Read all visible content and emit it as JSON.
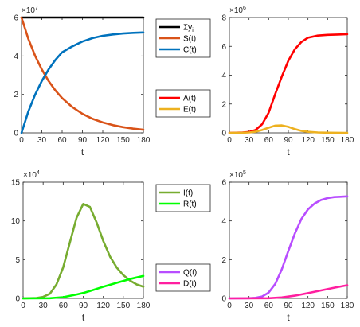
{
  "chart_data": [
    {
      "type": "line",
      "xlabel": "t",
      "ylabel": "",
      "xlim": [
        0,
        180
      ],
      "ylim": [
        0,
        6
      ],
      "xticks": [
        0,
        30,
        60,
        90,
        120,
        150,
        180
      ],
      "yticks": [
        0,
        2,
        4,
        6
      ],
      "multiplier": "×10",
      "multiplier_exp": "7",
      "legend": "right-outside",
      "series": [
        {
          "name": "Σy",
          "name_sub": "i",
          "color": "#000000",
          "x": [
            0,
            30,
            60,
            90,
            120,
            150,
            180
          ],
          "y": [
            6,
            6,
            6,
            6,
            6,
            6,
            6
          ]
        },
        {
          "name": "S(t)",
          "color": "#D95319",
          "x": [
            0,
            10,
            20,
            30,
            40,
            50,
            60,
            75,
            90,
            105,
            120,
            135,
            150,
            165,
            180
          ],
          "y": [
            6,
            4.9,
            4.02,
            3.3,
            2.7,
            2.21,
            1.81,
            1.34,
            0.99,
            0.73,
            0.54,
            0.4,
            0.3,
            0.22,
            0.16
          ]
        },
        {
          "name": "C(t)",
          "color": "#0072BD",
          "x": [
            0,
            10,
            20,
            30,
            40,
            50,
            60,
            75,
            90,
            105,
            120,
            135,
            150,
            165,
            180
          ],
          "y": [
            0,
            1.1,
            1.98,
            2.7,
            3.3,
            3.79,
            4.19,
            4.5,
            4.75,
            4.93,
            5.05,
            5.12,
            5.17,
            5.2,
            5.22
          ]
        }
      ]
    },
    {
      "type": "line",
      "xlabel": "t",
      "ylabel": "",
      "xlim": [
        0,
        180
      ],
      "ylim": [
        0,
        8
      ],
      "xticks": [
        0,
        30,
        60,
        90,
        120,
        150,
        180
      ],
      "yticks": [
        0,
        2,
        4,
        6,
        8
      ],
      "multiplier": "×10",
      "multiplier_exp": "6",
      "legend": "right-outside",
      "series": [
        {
          "name": "A(t)",
          "color": "#FF0000",
          "x": [
            0,
            20,
            30,
            40,
            50,
            60,
            70,
            80,
            90,
            100,
            110,
            120,
            135,
            150,
            165,
            180
          ],
          "y": [
            0,
            0.02,
            0.06,
            0.2,
            0.6,
            1.4,
            2.7,
            3.9,
            5.0,
            5.8,
            6.3,
            6.6,
            6.75,
            6.8,
            6.82,
            6.84
          ]
        },
        {
          "name": "E(t)",
          "color": "#EDB120",
          "x": [
            0,
            20,
            30,
            40,
            50,
            60,
            70,
            80,
            90,
            100,
            110,
            120,
            135,
            150,
            165,
            180
          ],
          "y": [
            0,
            0.01,
            0.03,
            0.08,
            0.2,
            0.36,
            0.5,
            0.52,
            0.42,
            0.26,
            0.14,
            0.07,
            0.03,
            0.01,
            0.005,
            0
          ]
        }
      ]
    },
    {
      "type": "line",
      "xlabel": "t",
      "ylabel": "",
      "xlim": [
        0,
        180
      ],
      "ylim": [
        0,
        15
      ],
      "xticks": [
        0,
        30,
        60,
        90,
        120,
        150,
        180
      ],
      "yticks": [
        0,
        5,
        10,
        15
      ],
      "multiplier": "×10",
      "multiplier_exp": "4",
      "legend": "right-outside",
      "series": [
        {
          "name": "I(t)",
          "color": "#77AC30",
          "x": [
            0,
            20,
            30,
            40,
            50,
            60,
            70,
            80,
            90,
            100,
            110,
            120,
            130,
            140,
            150,
            160,
            170,
            180
          ],
          "y": [
            0,
            0.05,
            0.2,
            0.6,
            1.8,
            4.0,
            7.2,
            10.4,
            12.2,
            11.8,
            9.8,
            7.4,
            5.4,
            4.0,
            3.0,
            2.3,
            1.8,
            1.5
          ]
        },
        {
          "name": "R(t)",
          "color": "#00FF00",
          "x": [
            0,
            40,
            60,
            80,
            90,
            100,
            120,
            140,
            160,
            180
          ],
          "y": [
            0,
            0.02,
            0.15,
            0.5,
            0.7,
            0.95,
            1.5,
            2.0,
            2.5,
            2.9
          ]
        }
      ]
    },
    {
      "type": "line",
      "xlabel": "t",
      "ylabel": "",
      "xlim": [
        0,
        180
      ],
      "ylim": [
        0,
        6
      ],
      "xticks": [
        0,
        30,
        60,
        90,
        120,
        150,
        180
      ],
      "yticks": [
        0,
        2,
        4,
        6
      ],
      "multiplier": "×10",
      "multiplier_exp": "5",
      "legend": "right-outside",
      "series": [
        {
          "name": "Q(t)",
          "color": "#B84DFF",
          "x": [
            0,
            30,
            40,
            50,
            60,
            70,
            80,
            90,
            100,
            110,
            120,
            130,
            140,
            150,
            160,
            170,
            180
          ],
          "y": [
            0,
            0.01,
            0.03,
            0.1,
            0.3,
            0.75,
            1.5,
            2.45,
            3.35,
            4.1,
            4.6,
            4.9,
            5.08,
            5.18,
            5.23,
            5.25,
            5.27
          ]
        },
        {
          "name": "D(t)",
          "color": "#FF1FA0",
          "x": [
            0,
            60,
            80,
            100,
            120,
            140,
            160,
            180
          ],
          "y": [
            0,
            0.01,
            0.05,
            0.14,
            0.27,
            0.41,
            0.55,
            0.68
          ]
        }
      ]
    }
  ]
}
